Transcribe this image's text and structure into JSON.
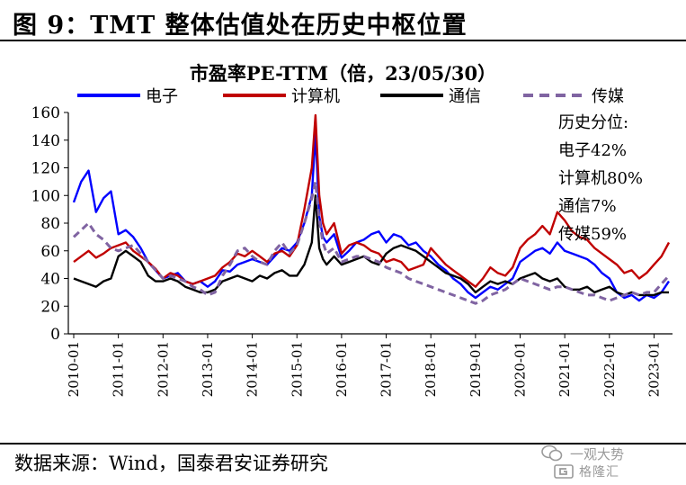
{
  "figure_title": "图 9：TMT 整体估值处在历史中枢位置",
  "source": "数据来源：Wind，国泰君安证券研究",
  "watermark": {
    "line1": "一观大势",
    "line2": "格隆汇"
  },
  "chart_data": {
    "type": "line",
    "title": "市盈率PE-TTM（倍，23/05/30）",
    "xlabel": "",
    "ylabel": "",
    "ylim": [
      0,
      160
    ],
    "yticks": [
      0,
      20,
      40,
      60,
      80,
      100,
      120,
      140,
      160
    ],
    "x_range": [
      "2010-01",
      "2023-05"
    ],
    "xticks": [
      "2010-01",
      "2011-01",
      "2012-01",
      "2013-01",
      "2014-01",
      "2015-01",
      "2016-01",
      "2017-01",
      "2018-01",
      "2019-01",
      "2020-01",
      "2021-01",
      "2022-01",
      "2023-01"
    ],
    "grid": false,
    "legend_position": "top",
    "annotation": [
      "历史分位:",
      "电子42%",
      "计算机80%",
      "通信7%",
      "传媒59%"
    ],
    "x": [
      "2010-01",
      "2010-03",
      "2010-05",
      "2010-07",
      "2010-09",
      "2010-11",
      "2011-01",
      "2011-03",
      "2011-05",
      "2011-07",
      "2011-09",
      "2011-11",
      "2012-01",
      "2012-03",
      "2012-05",
      "2012-07",
      "2012-09",
      "2012-11",
      "2013-01",
      "2013-03",
      "2013-05",
      "2013-07",
      "2013-09",
      "2013-11",
      "2014-01",
      "2014-03",
      "2014-05",
      "2014-07",
      "2014-09",
      "2014-11",
      "2015-01",
      "2015-03",
      "2015-05",
      "2015-06",
      "2015-07",
      "2015-08",
      "2015-09",
      "2015-11",
      "2016-01",
      "2016-03",
      "2016-05",
      "2016-07",
      "2016-09",
      "2016-11",
      "2017-01",
      "2017-03",
      "2017-05",
      "2017-07",
      "2017-09",
      "2017-11",
      "2018-01",
      "2018-03",
      "2018-05",
      "2018-07",
      "2018-09",
      "2018-11",
      "2019-01",
      "2019-03",
      "2019-05",
      "2019-07",
      "2019-09",
      "2019-11",
      "2020-01",
      "2020-03",
      "2020-05",
      "2020-07",
      "2020-09",
      "2020-11",
      "2021-01",
      "2021-03",
      "2021-05",
      "2021-07",
      "2021-09",
      "2021-11",
      "2022-01",
      "2022-03",
      "2022-05",
      "2022-07",
      "2022-09",
      "2022-11",
      "2023-01",
      "2023-03",
      "2023-05"
    ],
    "series": [
      {
        "name": "电子",
        "color": "#0000ff",
        "dash": false,
        "values": [
          95,
          110,
          118,
          88,
          98,
          103,
          72,
          75,
          70,
          62,
          52,
          46,
          40,
          42,
          44,
          38,
          36,
          38,
          34,
          38,
          46,
          45,
          50,
          52,
          54,
          52,
          50,
          56,
          62,
          60,
          66,
          80,
          100,
          145,
          85,
          70,
          66,
          72,
          55,
          60,
          66,
          68,
          72,
          74,
          66,
          72,
          70,
          64,
          66,
          60,
          56,
          50,
          46,
          40,
          36,
          30,
          26,
          30,
          34,
          32,
          36,
          40,
          52,
          56,
          60,
          62,
          58,
          66,
          60,
          58,
          56,
          54,
          50,
          44,
          40,
          30,
          26,
          28,
          24,
          28,
          26,
          30,
          38
        ]
      },
      {
        "name": "计算机",
        "color": "#c00000",
        "dash": false,
        "values": [
          52,
          56,
          60,
          55,
          58,
          62,
          64,
          66,
          60,
          56,
          52,
          47,
          40,
          44,
          42,
          38,
          36,
          38,
          40,
          42,
          48,
          52,
          58,
          56,
          60,
          56,
          52,
          58,
          60,
          56,
          64,
          90,
          120,
          158,
          100,
          80,
          72,
          80,
          58,
          64,
          66,
          64,
          60,
          58,
          52,
          54,
          52,
          46,
          48,
          50,
          62,
          56,
          50,
          46,
          42,
          38,
          34,
          40,
          48,
          44,
          42,
          48,
          62,
          68,
          72,
          78,
          72,
          88,
          82,
          74,
          70,
          68,
          62,
          58,
          54,
          50,
          44,
          46,
          40,
          44,
          50,
          56,
          66
        ]
      },
      {
        "name": "通信",
        "color": "#000000",
        "dash": false,
        "values": [
          40,
          38,
          36,
          34,
          38,
          40,
          56,
          60,
          56,
          52,
          42,
          38,
          38,
          40,
          38,
          34,
          32,
          30,
          30,
          32,
          38,
          40,
          42,
          40,
          38,
          42,
          40,
          44,
          46,
          42,
          42,
          50,
          66,
          100,
          62,
          54,
          50,
          56,
          50,
          52,
          54,
          56,
          52,
          50,
          58,
          62,
          64,
          62,
          60,
          56,
          52,
          48,
          44,
          42,
          40,
          36,
          30,
          34,
          38,
          36,
          38,
          36,
          40,
          42,
          44,
          40,
          38,
          40,
          34,
          32,
          32,
          34,
          30,
          32,
          34,
          30,
          28,
          30,
          28,
          28,
          28,
          30,
          30
        ]
      },
      {
        "name": "传媒",
        "color": "#8064a2",
        "dash": true,
        "values": [
          70,
          75,
          80,
          72,
          68,
          62,
          60,
          62,
          64,
          58,
          52,
          46,
          40,
          42,
          40,
          38,
          34,
          32,
          28,
          30,
          42,
          50,
          60,
          62,
          56,
          52,
          50,
          60,
          66,
          58,
          64,
          80,
          98,
          110,
          82,
          66,
          58,
          62,
          52,
          54,
          56,
          56,
          54,
          52,
          48,
          46,
          44,
          40,
          38,
          36,
          34,
          32,
          30,
          28,
          26,
          24,
          22,
          24,
          28,
          30,
          32,
          36,
          40,
          38,
          36,
          34,
          32,
          34,
          34,
          32,
          30,
          28,
          28,
          26,
          24,
          26,
          28,
          30,
          28,
          30,
          30,
          36,
          42
        ]
      }
    ]
  }
}
